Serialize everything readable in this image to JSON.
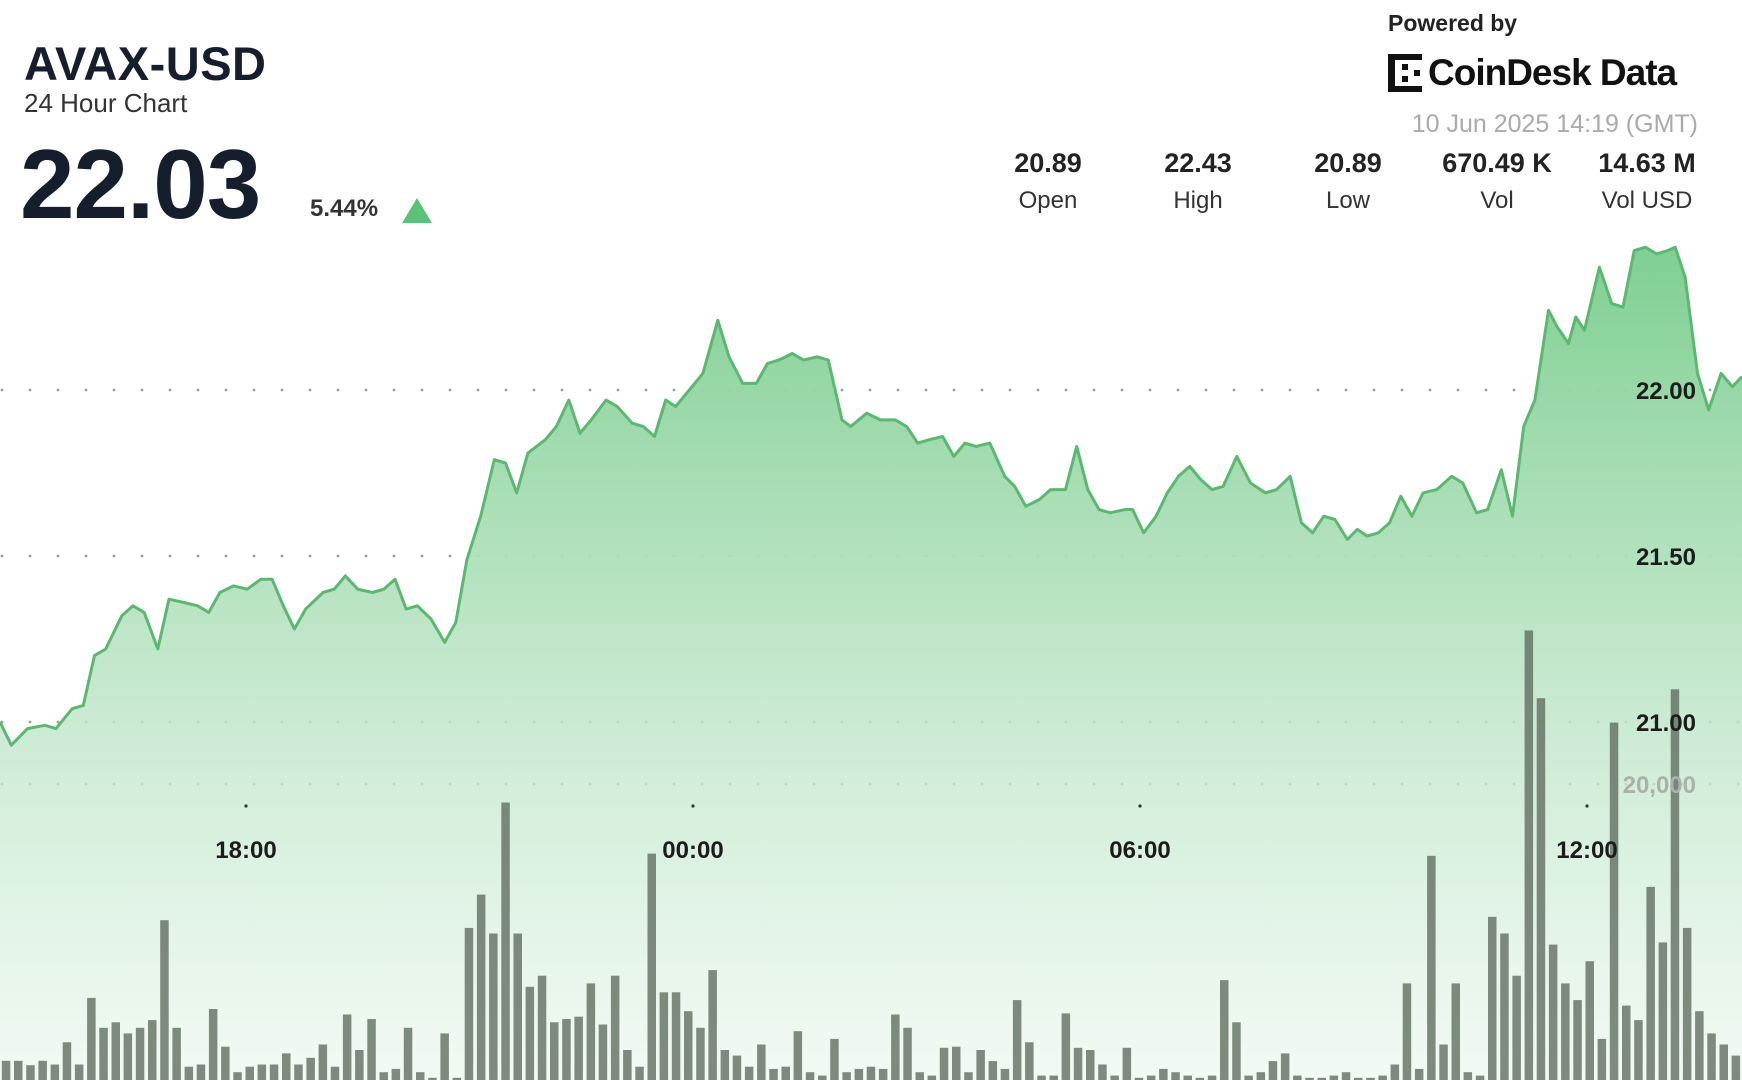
{
  "header": {
    "title": "AVAX-USD",
    "subtitle": "24 Hour Chart",
    "price": "22.03",
    "change": "5.44%",
    "change_direction_icon": "triangle-up-icon",
    "up_color": "#5cc27a"
  },
  "branding": {
    "powered_by": "Powered by",
    "logo_text": "CoinDesk Data",
    "timestamp": "10 Jun 2025 14:19 (GMT)"
  },
  "stats": [
    {
      "value": "20.89",
      "label": "Open"
    },
    {
      "value": "22.43",
      "label": "High"
    },
    {
      "value": "20.89",
      "label": "Low"
    },
    {
      "value": "670.49 K",
      "label": "Vol"
    },
    {
      "value": "14.63 M",
      "label": "Vol USD"
    }
  ],
  "chart_data": {
    "type": "area",
    "title": "",
    "xlabel": "",
    "ylabel": "",
    "grid": true,
    "line_color": "#5cb870",
    "fill_color": "#7fcf92",
    "volume_color": "#5d6a5d",
    "x_ticks": [
      "18:00",
      "00:00",
      "06:00",
      "12:00"
    ],
    "y_ticks": [
      "22.00",
      "21.50",
      "21.00"
    ],
    "y_tick_values": [
      22.0,
      21.5,
      21.0
    ],
    "volume_tick": "20,000",
    "volume_tick_value": 20000,
    "series": [
      {
        "type": "area",
        "points": [
          [
            "14:42",
            21.0
          ],
          [
            "14:51",
            20.93
          ],
          [
            "15:04",
            20.98
          ],
          [
            "15:18",
            20.99
          ],
          [
            "15:27",
            20.98
          ],
          [
            "15:40",
            21.04
          ],
          [
            "15:49",
            21.05
          ],
          [
            "15:58",
            21.2
          ],
          [
            "16:07",
            21.22
          ],
          [
            "16:20",
            21.32
          ],
          [
            "16:29",
            21.35
          ],
          [
            "16:38",
            21.33
          ],
          [
            "16:49",
            21.22
          ],
          [
            "16:58",
            21.37
          ],
          [
            "17:10",
            21.36
          ],
          [
            "17:21",
            21.35
          ],
          [
            "17:30",
            21.33
          ],
          [
            "17:39",
            21.39
          ],
          [
            "17:50",
            21.41
          ],
          [
            "18:01",
            21.4
          ],
          [
            "18:12",
            21.43
          ],
          [
            "18:21",
            21.43
          ],
          [
            "18:30",
            21.35
          ],
          [
            "18:39",
            21.28
          ],
          [
            "18:48",
            21.34
          ],
          [
            "19:02",
            21.39
          ],
          [
            "19:11",
            21.4
          ],
          [
            "19:20",
            21.44
          ],
          [
            "19:30",
            21.4
          ],
          [
            "19:42",
            21.39
          ],
          [
            "19:51",
            21.4
          ],
          [
            "20:00",
            21.43
          ],
          [
            "20:09",
            21.34
          ],
          [
            "20:18",
            21.35
          ],
          [
            "20:29",
            21.31
          ],
          [
            "20:40",
            21.24
          ],
          [
            "20:49",
            21.3
          ],
          [
            "20:58",
            21.49
          ],
          [
            "21:09",
            21.62
          ],
          [
            "21:20",
            21.79
          ],
          [
            "21:29",
            21.78
          ],
          [
            "21:38",
            21.69
          ],
          [
            "21:47",
            21.81
          ],
          [
            "22:01",
            21.85
          ],
          [
            "22:10",
            21.89
          ],
          [
            "22:20",
            21.97
          ],
          [
            "22:29",
            21.87
          ],
          [
            "22:38",
            21.91
          ],
          [
            "22:50",
            21.97
          ],
          [
            "22:59",
            21.95
          ],
          [
            "23:11",
            21.9
          ],
          [
            "23:20",
            21.89
          ],
          [
            "23:29",
            21.86
          ],
          [
            "23:38",
            21.97
          ],
          [
            "23:46",
            21.95
          ],
          [
            "23:57",
            22.0
          ],
          [
            "00:08",
            22.05
          ],
          [
            "00:20",
            22.21
          ],
          [
            "00:29",
            22.1
          ],
          [
            "00:40",
            22.02
          ],
          [
            "00:51",
            22.02
          ],
          [
            "01:00",
            22.08
          ],
          [
            "01:09",
            22.09
          ],
          [
            "01:20",
            22.11
          ],
          [
            "01:29",
            22.09
          ],
          [
            "01:40",
            22.1
          ],
          [
            "01:49",
            22.09
          ],
          [
            "02:00",
            21.91
          ],
          [
            "02:07",
            21.89
          ],
          [
            "02:20",
            21.93
          ],
          [
            "02:31",
            21.91
          ],
          [
            "02:43",
            21.91
          ],
          [
            "02:52",
            21.89
          ],
          [
            "03:01",
            21.84
          ],
          [
            "03:10",
            21.85
          ],
          [
            "03:21",
            21.86
          ],
          [
            "03:30",
            21.8
          ],
          [
            "03:39",
            21.84
          ],
          [
            "03:48",
            21.83
          ],
          [
            "03:59",
            21.84
          ],
          [
            "04:11",
            21.74
          ],
          [
            "04:19",
            21.71
          ],
          [
            "04:28",
            21.65
          ],
          [
            "04:39",
            21.67
          ],
          [
            "04:48",
            21.7
          ],
          [
            "05:00",
            21.7
          ],
          [
            "05:09",
            21.83
          ],
          [
            "05:18",
            21.7
          ],
          [
            "05:27",
            21.64
          ],
          [
            "05:36",
            21.63
          ],
          [
            "05:48",
            21.64
          ],
          [
            "05:54",
            21.64
          ],
          [
            "06:03",
            21.57
          ],
          [
            "06:13",
            21.62
          ],
          [
            "06:22",
            21.69
          ],
          [
            "06:31",
            21.74
          ],
          [
            "06:40",
            21.77
          ],
          [
            "06:49",
            21.73
          ],
          [
            "06:58",
            21.7
          ],
          [
            "07:07",
            21.71
          ],
          [
            "07:18",
            21.8
          ],
          [
            "07:29",
            21.72
          ],
          [
            "07:41",
            21.69
          ],
          [
            "07:50",
            21.7
          ],
          [
            "08:01",
            21.74
          ],
          [
            "08:10",
            21.6
          ],
          [
            "08:19",
            21.57
          ],
          [
            "08:28",
            21.62
          ],
          [
            "08:37",
            21.61
          ],
          [
            "08:47",
            21.55
          ],
          [
            "08:55",
            21.58
          ],
          [
            "09:03",
            21.56
          ],
          [
            "09:12",
            21.57
          ],
          [
            "09:21",
            21.6
          ],
          [
            "09:30",
            21.68
          ],
          [
            "09:39",
            21.62
          ],
          [
            "09:48",
            21.69
          ],
          [
            "09:59",
            21.7
          ],
          [
            "10:11",
            21.74
          ],
          [
            "10:20",
            21.72
          ],
          [
            "10:31",
            21.63
          ],
          [
            "10:40",
            21.64
          ],
          [
            "10:51",
            21.76
          ],
          [
            "11:00",
            21.62
          ],
          [
            "11:09",
            21.89
          ],
          [
            "11:18",
            21.97
          ],
          [
            "11:29",
            22.24
          ],
          [
            "11:36",
            22.19
          ],
          [
            "11:45",
            22.14
          ],
          [
            "11:51",
            22.22
          ],
          [
            "11:58",
            22.18
          ],
          [
            "12:10",
            22.37
          ],
          [
            "12:20",
            22.26
          ],
          [
            "12:29",
            22.25
          ],
          [
            "12:38",
            22.42
          ],
          [
            "12:47",
            22.43
          ],
          [
            "12:56",
            22.41
          ],
          [
            "13:05",
            22.42
          ],
          [
            "13:11",
            22.43
          ],
          [
            "13:19",
            22.34
          ],
          [
            "13:29",
            22.05
          ],
          [
            "13:38",
            21.94
          ],
          [
            "13:48",
            22.05
          ],
          [
            "13:57",
            22.01
          ],
          [
            "14:06",
            22.04
          ]
        ]
      },
      {
        "type": "bar",
        "values": [
          1300,
          1300,
          1000,
          1300,
          1050,
          2550,
          1050,
          5550,
          3525,
          3900,
          3150,
          3525,
          4050,
          10800,
          3525,
          900,
          1050,
          4800,
          2250,
          525,
          900,
          1050,
          1050,
          1800,
          1050,
          1500,
          2400,
          900,
          4425,
          2025,
          4125,
          525,
          750,
          3525,
          525,
          150,
          3150,
          150,
          10275,
          12525,
          9900,
          18750,
          9900,
          6300,
          7050,
          3900,
          4125,
          4275,
          6525,
          3750,
          7050,
          2025,
          900,
          15300,
          5925,
          5925,
          4650,
          3525,
          7425,
          2025,
          1650,
          900,
          2400,
          750,
          900,
          3300,
          525,
          300,
          2775,
          525,
          750,
          900,
          750,
          4425,
          3525,
          525,
          300,
          2175,
          2250,
          525,
          2025,
          1275,
          750,
          5400,
          2550,
          300,
          300,
          4500,
          2175,
          2025,
          1050,
          300,
          2175,
          150,
          300,
          750,
          525,
          300,
          150,
          300,
          6750,
          3900,
          300,
          525,
          1275,
          1800,
          300,
          150,
          150,
          300,
          525,
          150,
          150,
          300,
          1050,
          6525,
          750,
          15150,
          2400,
          6525,
          525,
          300,
          11025,
          9900,
          7050,
          30375,
          25800,
          9150,
          6525,
          5400,
          8025,
          2775,
          24150,
          5025,
          4050,
          13050,
          9300,
          26400,
          10275,
          4650,
          3150,
          2400,
          1650
        ]
      }
    ]
  }
}
